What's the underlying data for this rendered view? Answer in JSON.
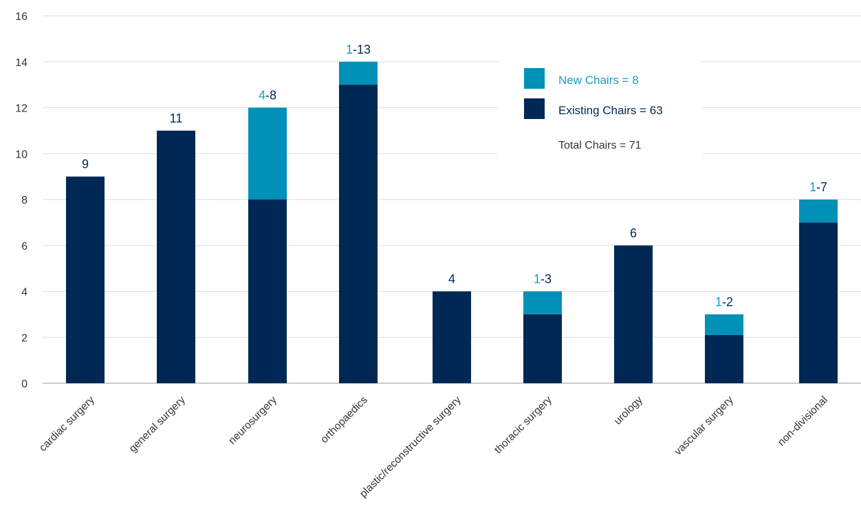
{
  "chart_data": {
    "type": "bar",
    "stacked": true,
    "categories": [
      "cardiac surgery",
      "general surgery",
      "neurosurgery",
      "orthopaedics",
      "plastic/reconstructive surgery",
      "thoracic surgery",
      "urology",
      "vascular surgery",
      "non-divisional"
    ],
    "series": [
      {
        "name": "Existing Chairs = 63",
        "color": "#002855",
        "values": [
          9,
          11,
          8,
          13,
          4,
          3,
          6,
          2.1,
          7
        ]
      },
      {
        "name": "New Chairs = 8",
        "color": "#0090b8",
        "values": [
          0,
          0,
          4,
          1,
          0,
          1,
          0,
          0.9,
          1
        ]
      }
    ],
    "bar_labels": [
      {
        "new": "",
        "existing": "9"
      },
      {
        "new": "",
        "existing": "11"
      },
      {
        "new": "4",
        "existing": "-8"
      },
      {
        "new": "1",
        "existing": "-13"
      },
      {
        "new": "",
        "existing": "4"
      },
      {
        "new": "1",
        "existing": "-3"
      },
      {
        "new": "",
        "existing": "6"
      },
      {
        "new": "1",
        "existing": "-2"
      },
      {
        "new": "1",
        "existing": "-7"
      }
    ],
    "ylim": [
      0,
      16
    ],
    "yticks": [
      0,
      2,
      4,
      6,
      8,
      10,
      12,
      14,
      16
    ],
    "grid": true,
    "legend": {
      "position": "top-right",
      "entries": [
        {
          "label": "New Chairs = 8",
          "color": "#0090b8"
        },
        {
          "label": "Existing Chairs = 63",
          "color": "#002855"
        }
      ],
      "note": "Total Chairs = 71"
    },
    "title": "",
    "xlabel": "",
    "ylabel": "",
    "colors": {
      "new": "#0090b8",
      "existing": "#002855",
      "new_text": "#1a9dc0",
      "existing_text": "#002855",
      "axis_text": "#333333",
      "grid": "#dddddd"
    }
  }
}
